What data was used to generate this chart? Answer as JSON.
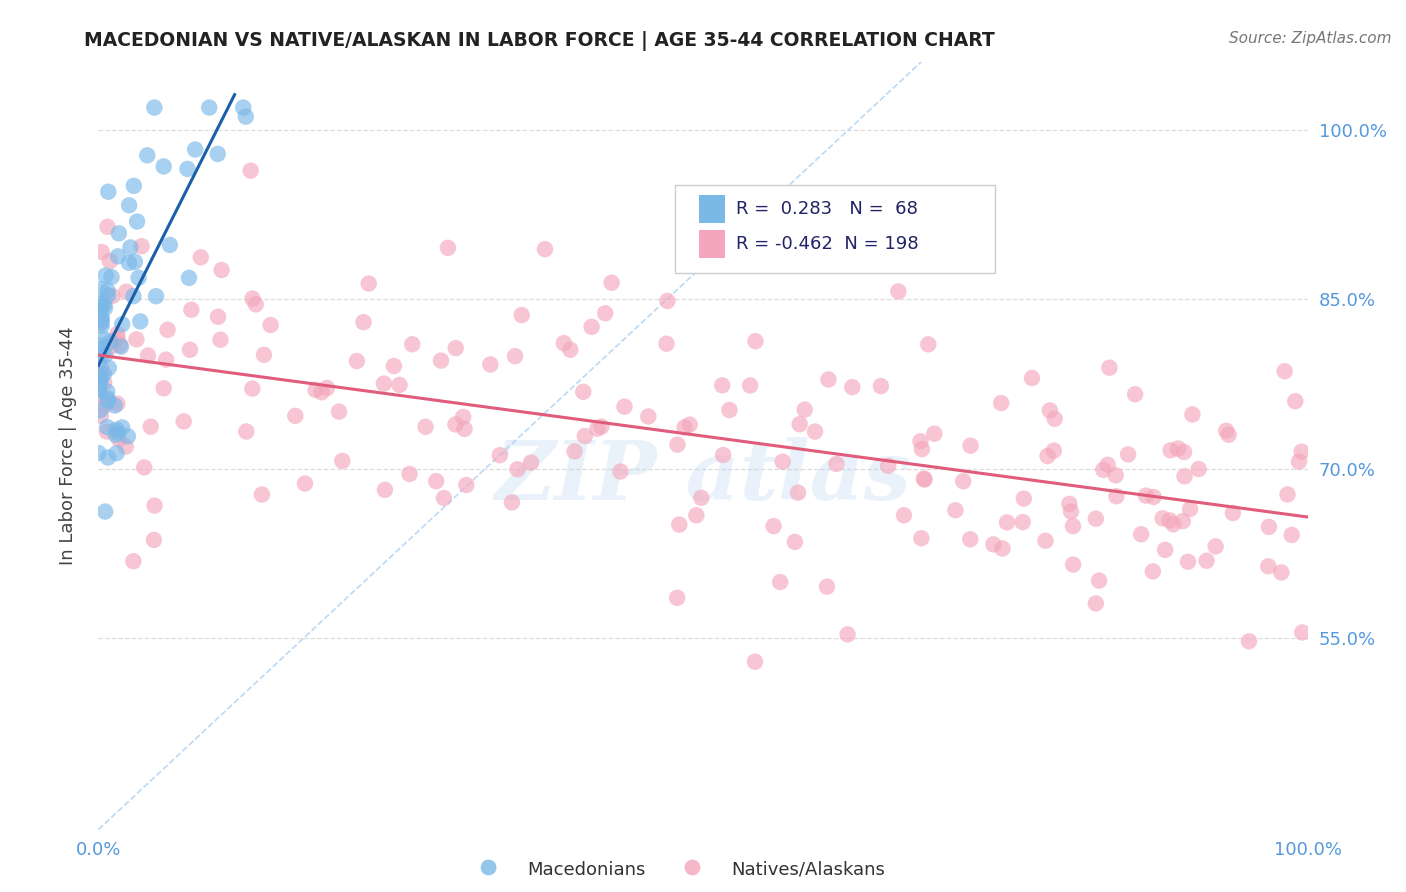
{
  "title": "MACEDONIAN VS NATIVE/ALASKAN IN LABOR FORCE | AGE 35-44 CORRELATION CHART",
  "source": "Source: ZipAtlas.com",
  "ylabel": "In Labor Force | Age 35-44",
  "xlim": [
    0.0,
    1.0
  ],
  "ylim": [
    0.38,
    1.06
  ],
  "ytick_labels": [
    "55.0%",
    "70.0%",
    "85.0%",
    "100.0%"
  ],
  "yticks": [
    0.55,
    0.7,
    0.85,
    1.0
  ],
  "blue_R": 0.283,
  "blue_N": 68,
  "pink_R": -0.462,
  "pink_N": 198,
  "blue_color": "#7ab8e8",
  "pink_color": "#f4a7bc",
  "blue_line_color": "#1a5fa8",
  "pink_line_color": "#e05c7a",
  "diag_line_color": "#a0c8f0",
  "legend_blue_label": "Macedonians",
  "legend_pink_label": "Natives/Alaskans",
  "tick_color": "#5599dd",
  "grid_color": "#dddddd",
  "title_color": "#222222",
  "source_color": "#777777"
}
